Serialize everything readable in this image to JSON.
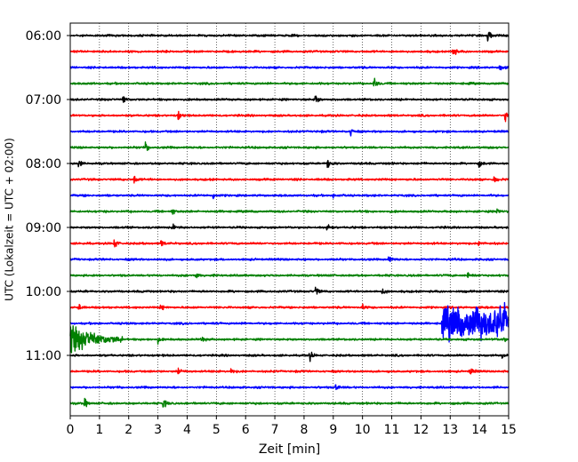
{
  "chart_data": {
    "type": "line",
    "title": "",
    "xlabel": "Zeit  [min]",
    "ylabel": "UTC (Lokalzeit = UTC + 02:00)",
    "xlim": [
      0,
      15
    ],
    "x_ticks": [
      "0",
      "1",
      "2",
      "3",
      "4",
      "5",
      "6",
      "7",
      "8",
      "9",
      "10",
      "11",
      "12",
      "13",
      "14",
      "15"
    ],
    "y_tick_labels": [
      "06:00",
      "07:00",
      "08:00",
      "09:00",
      "10:00",
      "11:00"
    ],
    "trace_start_time": "06:00",
    "trace_interval_minutes": 15,
    "grid_vertical": true,
    "grid_style": "dotted",
    "series": [
      {
        "start": "06:00",
        "color": "#000000",
        "events": [
          {
            "x": 14.3,
            "amp": 1.0
          }
        ]
      },
      {
        "start": "06:15",
        "color": "#ff0000",
        "events": [
          {
            "x": 13.1,
            "amp": 1.0
          }
        ]
      },
      {
        "start": "06:30",
        "color": "#0000ff",
        "events": [
          {
            "x": 14.7,
            "amp": 0.6
          }
        ]
      },
      {
        "start": "06:45",
        "color": "#008000",
        "events": [
          {
            "x": 10.4,
            "amp": 1.0
          }
        ]
      },
      {
        "start": "07:00",
        "color": "#000000",
        "events": [
          {
            "x": 1.8,
            "amp": 1.0
          },
          {
            "x": 8.4,
            "amp": 1.0
          }
        ]
      },
      {
        "start": "07:15",
        "color": "#ff0000",
        "events": [
          {
            "x": 3.7,
            "amp": 0.8
          },
          {
            "x": 14.9,
            "amp": 0.9
          }
        ]
      },
      {
        "start": "07:30",
        "color": "#0000ff",
        "events": [
          {
            "x": 9.6,
            "amp": 0.8
          }
        ]
      },
      {
        "start": "07:45",
        "color": "#008000",
        "events": [
          {
            "x": 2.6,
            "amp": 0.8
          }
        ]
      },
      {
        "start": "08:00",
        "color": "#000000",
        "events": [
          {
            "x": 0.3,
            "amp": 0.8
          },
          {
            "x": 8.8,
            "amp": 1.0
          },
          {
            "x": 14.0,
            "amp": 0.5
          }
        ]
      },
      {
        "start": "08:15",
        "color": "#ff0000",
        "events": [
          {
            "x": 2.2,
            "amp": 0.8
          },
          {
            "x": 14.5,
            "amp": 0.8
          }
        ]
      },
      {
        "start": "08:30",
        "color": "#0000ff",
        "events": [
          {
            "x": 4.9,
            "amp": 0.6
          },
          {
            "x": 9.0,
            "amp": 0.5
          }
        ]
      },
      {
        "start": "08:45",
        "color": "#008000",
        "events": [
          {
            "x": 3.5,
            "amp": 0.6
          },
          {
            "x": 14.6,
            "amp": 0.8
          }
        ]
      },
      {
        "start": "09:00",
        "color": "#000000",
        "events": [
          {
            "x": 3.5,
            "amp": 0.8
          },
          {
            "x": 8.8,
            "amp": 0.9
          }
        ]
      },
      {
        "start": "09:15",
        "color": "#ff0000",
        "events": [
          {
            "x": 1.5,
            "amp": 0.9
          },
          {
            "x": 3.1,
            "amp": 0.8
          },
          {
            "x": 14.0,
            "amp": 0.8
          }
        ]
      },
      {
        "start": "09:30",
        "color": "#0000ff",
        "events": [
          {
            "x": 10.9,
            "amp": 0.6
          }
        ]
      },
      {
        "start": "09:45",
        "color": "#008000",
        "events": [
          {
            "x": 4.3,
            "amp": 0.8
          },
          {
            "x": 13.6,
            "amp": 0.8
          }
        ]
      },
      {
        "start": "10:00",
        "color": "#000000",
        "events": [
          {
            "x": 8.4,
            "amp": 1.0
          },
          {
            "x": 10.7,
            "amp": 0.7
          }
        ]
      },
      {
        "start": "10:15",
        "color": "#ff0000",
        "events": [
          {
            "x": 0.3,
            "amp": 0.6
          },
          {
            "x": 3.1,
            "amp": 0.6
          },
          {
            "x": 10.0,
            "amp": 0.5
          }
        ]
      },
      {
        "start": "10:30",
        "color": "#0000ff",
        "events": [
          {
            "x": 12.7,
            "amp": 3.0,
            "duration": 2.3
          }
        ]
      },
      {
        "start": "10:45",
        "color": "#008000",
        "events": [
          {
            "x": 0.0,
            "amp": 2.6,
            "duration": 1.8
          },
          {
            "x": 3.0,
            "amp": 0.6
          },
          {
            "x": 4.5,
            "amp": 0.6
          },
          {
            "x": 14.8,
            "amp": 0.6
          }
        ]
      },
      {
        "start": "11:00",
        "color": "#000000",
        "events": [
          {
            "x": 8.2,
            "amp": 0.9
          },
          {
            "x": 14.8,
            "amp": 0.6
          }
        ]
      },
      {
        "start": "11:15",
        "color": "#ff0000",
        "events": [
          {
            "x": 3.7,
            "amp": 0.7
          },
          {
            "x": 5.5,
            "amp": 0.7
          },
          {
            "x": 13.7,
            "amp": 0.7
          }
        ]
      },
      {
        "start": "11:30",
        "color": "#0000ff",
        "events": [
          {
            "x": 9.1,
            "amp": 0.7
          }
        ]
      },
      {
        "start": "11:45",
        "color": "#008000",
        "events": [
          {
            "x": 0.5,
            "amp": 0.8
          },
          {
            "x": 3.2,
            "amp": 0.8
          }
        ]
      }
    ]
  }
}
